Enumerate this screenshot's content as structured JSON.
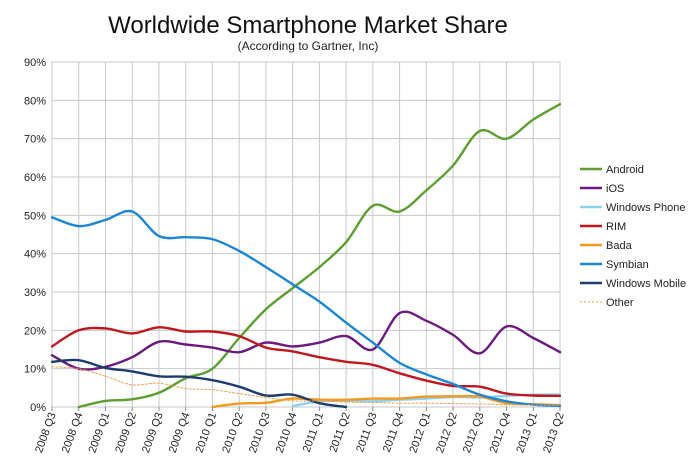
{
  "chart_data": {
    "type": "line",
    "title": "Worldwide Smartphone Market Share",
    "subtitle": "(According to Gartner, Inc)",
    "xlabel": "",
    "ylabel": "",
    "ylim": [
      0,
      90
    ],
    "y_ticks": [
      "0%",
      "10%",
      "20%",
      "30%",
      "40%",
      "50%",
      "60%",
      "70%",
      "80%",
      "90%"
    ],
    "grid": "horizontal and vertical",
    "legend": "right",
    "categories": [
      "2008 Q3",
      "2008 Q4",
      "2009 Q1",
      "2009 Q2",
      "2009 Q3",
      "2009 Q4",
      "2010 Q1",
      "2010 Q2",
      "2010 Q3",
      "2010 Q4",
      "2011 Q1",
      "2011 Q2",
      "2011 Q3",
      "2011 Q4",
      "2012 Q1",
      "2012 Q2",
      "2012 Q3",
      "2012 Q4",
      "2013 Q1",
      "2013 Q2"
    ],
    "series": [
      {
        "name": "Android",
        "color": "#5c9e2f",
        "dashed": false,
        "values": [
          null,
          0,
          1.6,
          2.0,
          3.7,
          7.5,
          10.0,
          18.0,
          25.5,
          31.0,
          36.5,
          43.0,
          52.5,
          51.0,
          56.5,
          63.0,
          72.0,
          70.0,
          75.0,
          79.0
        ]
      },
      {
        "name": "iOS",
        "color": "#6b1a7d",
        "dashed": false,
        "values": [
          13.5,
          10.0,
          10.5,
          13.0,
          17.0,
          16.3,
          15.5,
          14.3,
          16.8,
          15.8,
          16.8,
          18.5,
          15.0,
          24.5,
          22.5,
          18.8,
          14.0,
          21.0,
          18.0,
          14.3
        ]
      },
      {
        "name": "Windows Phone",
        "color": "#8dd0f5",
        "dashed": false,
        "values": [
          null,
          null,
          null,
          null,
          null,
          null,
          null,
          null,
          null,
          0.2,
          1.5,
          1.6,
          1.5,
          1.9,
          2.2,
          2.6,
          2.5,
          2.9,
          3.2,
          3.3
        ]
      },
      {
        "name": "RIM",
        "color": "#c0161f",
        "dashed": false,
        "values": [
          15.8,
          20.0,
          20.5,
          19.2,
          20.8,
          19.7,
          19.7,
          18.5,
          15.5,
          14.5,
          13.0,
          11.8,
          11.0,
          8.8,
          6.9,
          5.5,
          5.3,
          3.5,
          3.0,
          2.9
        ]
      },
      {
        "name": "Bada",
        "color": "#f29a1e",
        "dashed": false,
        "values": [
          null,
          null,
          null,
          null,
          null,
          null,
          0,
          0.9,
          1.1,
          2.2,
          1.9,
          1.9,
          2.2,
          2.2,
          2.7,
          2.8,
          2.7,
          1.0,
          0.7,
          0.5
        ]
      },
      {
        "name": "Symbian",
        "color": "#1c86d2",
        "dashed": false,
        "values": [
          49.5,
          47.2,
          48.8,
          51.0,
          44.6,
          44.3,
          43.8,
          40.7,
          36.5,
          32.0,
          27.5,
          22.0,
          16.8,
          11.5,
          8.5,
          6.0,
          3.2,
          1.5,
          0.6,
          0.3
        ]
      },
      {
        "name": "Windows Mobile",
        "color": "#1b3d6e",
        "dashed": false,
        "values": [
          11.8,
          12.2,
          10.2,
          9.3,
          8.0,
          7.9,
          7.0,
          5.3,
          3.0,
          3.2,
          1.0,
          0.0,
          null,
          null,
          null,
          null,
          null,
          null,
          null,
          null
        ]
      },
      {
        "name": "Other",
        "color": "#f0a050",
        "dashed": true,
        "values": [
          10.5,
          10.0,
          8.0,
          5.8,
          6.2,
          4.8,
          4.5,
          3.5,
          2.5,
          1.6,
          1.6,
          1.3,
          1.2,
          1.0,
          1.0,
          0.9,
          0.8,
          0.6,
          0.5,
          0.5
        ]
      }
    ]
  }
}
